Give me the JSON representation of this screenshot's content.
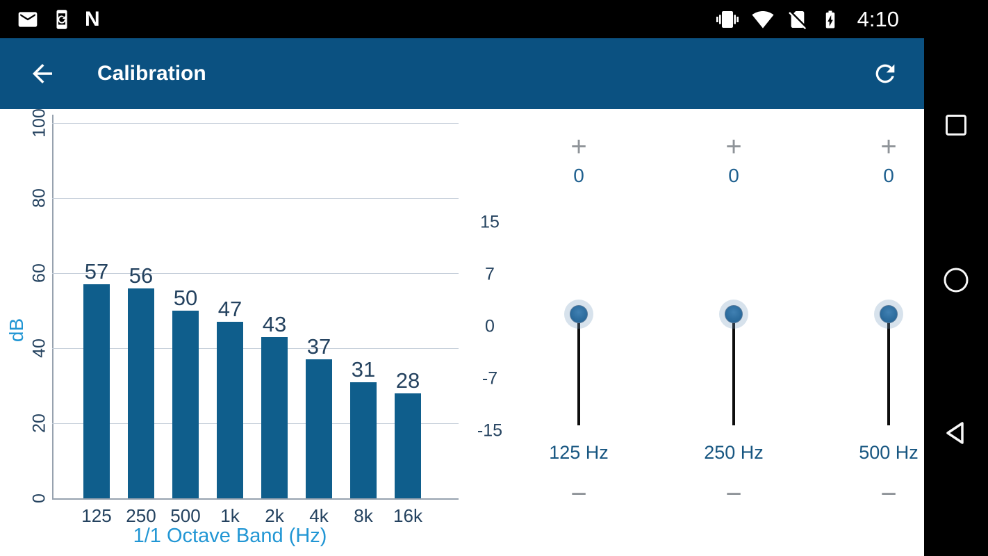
{
  "status_bar": {
    "time": "4:10",
    "nfc_glyph": "N",
    "icons_left": [
      "gmail-icon",
      "device-sync-icon",
      "nfc-icon"
    ],
    "icons_right": [
      "vibrate-icon",
      "wifi-icon",
      "no-sim-icon",
      "battery-charging-icon"
    ]
  },
  "app_bar": {
    "title": "Calibration",
    "icons": [
      "back-arrow-icon",
      "refresh-icon"
    ]
  },
  "chart_data": {
    "type": "bar",
    "categories": [
      "125",
      "250",
      "500",
      "1k",
      "2k",
      "4k",
      "8k",
      "16k"
    ],
    "values": [
      57,
      56,
      50,
      47,
      43,
      37,
      31,
      28
    ],
    "title": "",
    "xlabel": "1/1 Octave Band (Hz)",
    "ylabel": "dB",
    "ylim": [
      0,
      100
    ],
    "yticks": [
      0,
      20,
      40,
      60,
      80,
      100
    ],
    "grid": true,
    "legend": false
  },
  "equalizer": {
    "scale_labels": [
      "15",
      "7",
      "0",
      "-7",
      "-15"
    ],
    "increment_label": "+",
    "decrement_label": "−",
    "sliders": [
      {
        "frequency": "125 Hz",
        "value": "0"
      },
      {
        "frequency": "250 Hz",
        "value": "0"
      },
      {
        "frequency": "500 Hz",
        "value": "0"
      }
    ]
  },
  "nav_bar": {
    "buttons": [
      "recents-button",
      "home-button",
      "back-button"
    ]
  },
  "colors": {
    "app_bar": "#0b5181",
    "bar": "#0f5e8c",
    "axis_title": "#2196d4",
    "tick": "#24425f",
    "eq_value": "#1f608f",
    "eq_freq": "#175681"
  }
}
